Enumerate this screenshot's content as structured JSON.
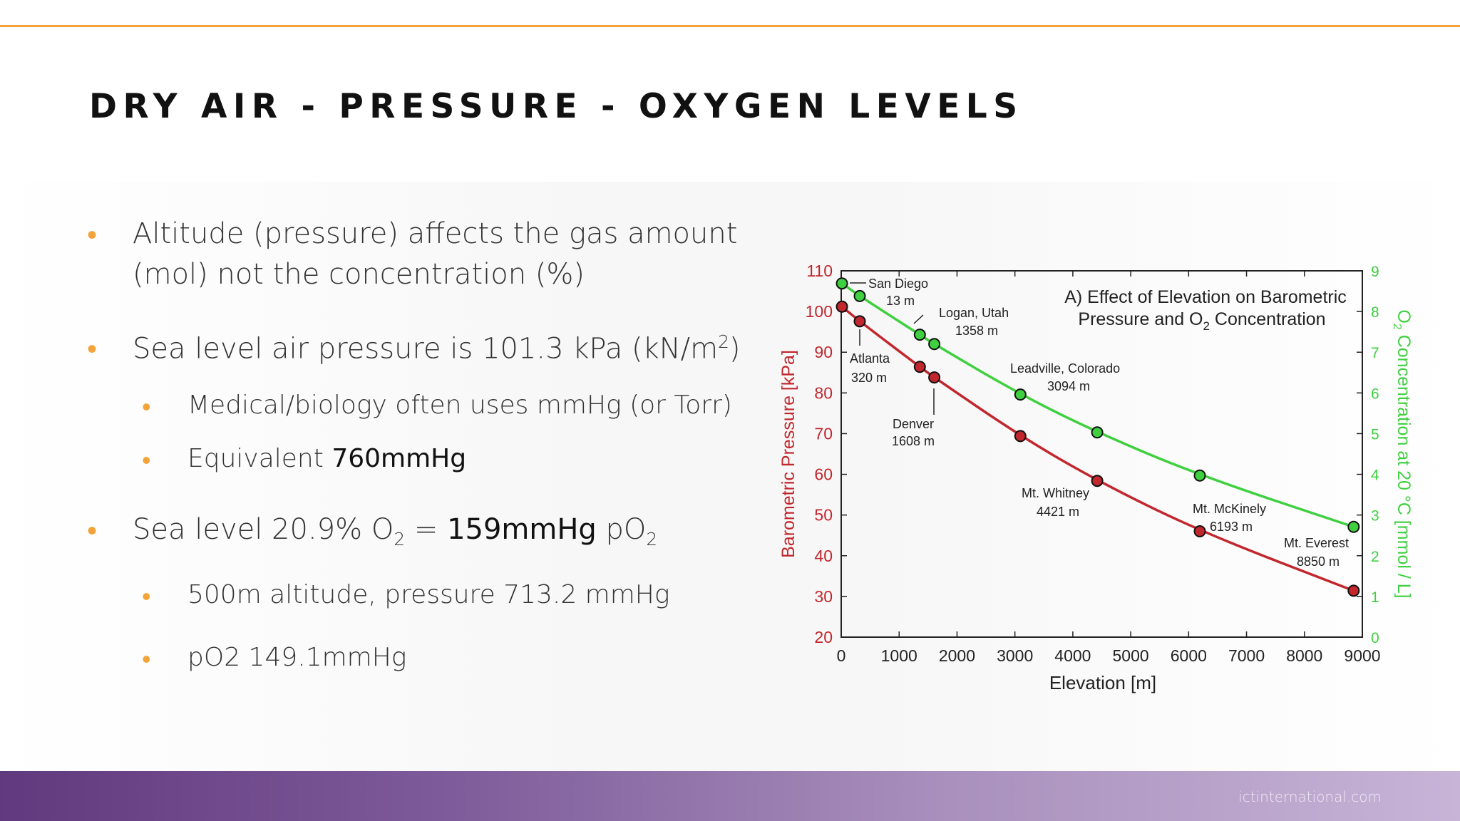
{
  "title": "DRY AIR - PRESSURE - OXYGEN LEVELS",
  "bullets": {
    "b1": {
      "line1": "Altitude (pressure) affects the gas amount",
      "line2": "(mol) not the concentration (%)"
    },
    "b2": {
      "text": "Sea level air pressure is 101.3 kPa (kN/m",
      "sup": "2",
      "end": ")"
    },
    "b2a": {
      "text": "Medical/biology often uses mmHg (or Torr)"
    },
    "b2b": {
      "prefix": "Equivalent ",
      "strong": "760mmHg"
    },
    "b3": {
      "t1": "Sea level 20.9% O",
      "s1": "2",
      "t2": " = ",
      "strong": "159mmHg",
      "t3": " pO",
      "s2": "2"
    },
    "b3a": {
      "text": "500m altitude, pressure 713.2 mmHg"
    },
    "b3b": {
      "text": "pO2 149.1mmHg"
    }
  },
  "footer": {
    "url": "ictinternational.com"
  },
  "colors": {
    "accent": "#f2a33a",
    "pressure": "#c1272d",
    "oxygen": "#3fd03f",
    "footer_start": "#61397e",
    "footer_end": "#c7b4d7"
  },
  "chart_data": {
    "type": "line",
    "title_line1": "A) Effect of Elevation on Barometric",
    "title_line2_a": "Pressure and O",
    "title_line2_sub": "2",
    "title_line2_b": " Concentration",
    "xlabel": "Elevation [m]",
    "ylabel_left": "Barometric Pressure [kPa]",
    "ylabel_right_a": "O",
    "ylabel_right_sub": "2",
    "ylabel_right_b": " Concentration at 20 °C [mmol / L]",
    "xlim": [
      0,
      9000
    ],
    "ylim_left": [
      20,
      110
    ],
    "ylim_right": [
      0,
      9
    ],
    "x_ticks": [
      "0",
      "1000",
      "2000",
      "3000",
      "4000",
      "5000",
      "6000",
      "7000",
      "8000",
      "9000"
    ],
    "y_left_ticks": [
      "20",
      "30",
      "40",
      "50",
      "60",
      "70",
      "80",
      "90",
      "100",
      "110"
    ],
    "y_right_ticks": [
      "0",
      "1",
      "2",
      "3",
      "4",
      "5",
      "6",
      "7",
      "8",
      "9"
    ],
    "series": [
      {
        "name": "Barometric Pressure [kPa]",
        "axis": "left",
        "color": "#c1272d",
        "x": [
          13,
          320,
          1358,
          1608,
          3094,
          4421,
          6193,
          8850
        ],
        "y": [
          101.2,
          97.6,
          86.4,
          83.8,
          69.4,
          58.4,
          46.0,
          31.4
        ]
      },
      {
        "name": "O2 Concentration at 20 °C [mmol / L]",
        "axis": "right",
        "color": "#3fd03f",
        "x": [
          13,
          320,
          1358,
          1608,
          3094,
          4421,
          6193,
          8850
        ],
        "y": [
          8.69,
          8.38,
          7.43,
          7.2,
          5.96,
          5.03,
          3.97,
          2.71
        ]
      }
    ],
    "annotations": [
      {
        "name": "San Diego",
        "elev": "13 m"
      },
      {
        "name": "Atlanta",
        "elev": "320 m"
      },
      {
        "name": "Logan, Utah",
        "elev": "1358 m"
      },
      {
        "name": "Denver",
        "elev": "1608 m"
      },
      {
        "name": "Leadville, Colorado",
        "elev": "3094 m"
      },
      {
        "name": "Mt. Whitney",
        "elev": "4421 m"
      },
      {
        "name": "Mt. McKinely",
        "elev": "6193 m"
      },
      {
        "name": "Mt. Everest",
        "elev": "8850 m"
      }
    ]
  }
}
